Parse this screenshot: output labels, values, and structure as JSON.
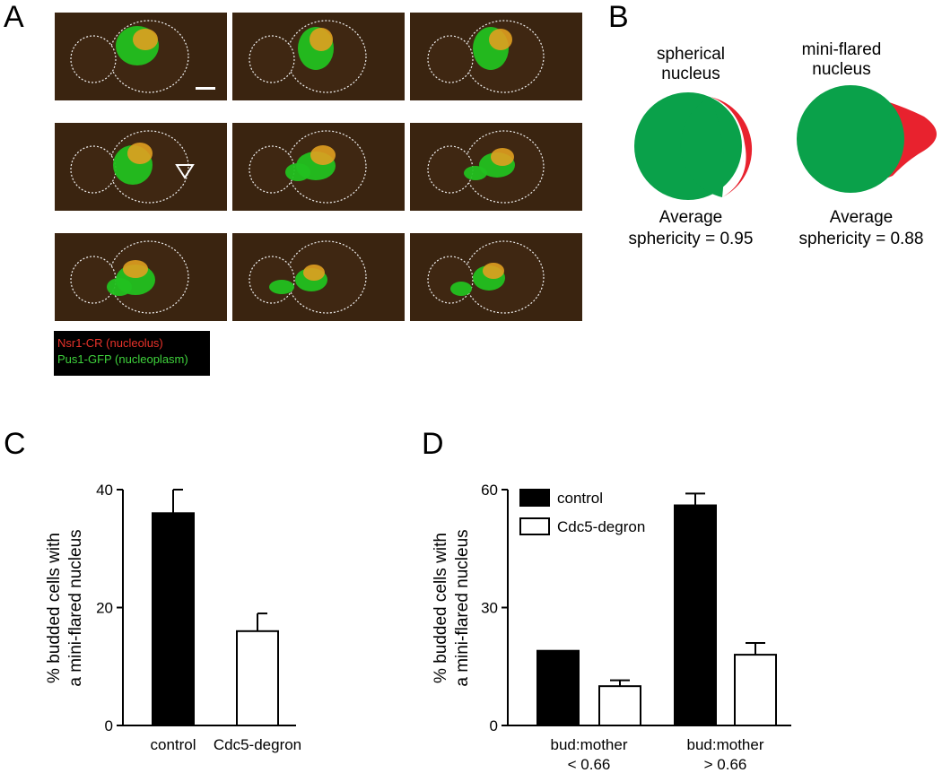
{
  "panels": {
    "a": "A",
    "b": "B",
    "c": "C",
    "d": "D"
  },
  "panel_a": {
    "legend": [
      {
        "text": "Nsr1-CR (nucleolus)",
        "color": "#e8322a"
      },
      {
        "text": "Pus1-GFP (nucleoplasm)",
        "color": "#3fd33c"
      }
    ]
  },
  "panel_b": {
    "spherical": {
      "label_line1": "spherical",
      "label_line2": "nucleus",
      "stat_line1": "Average",
      "stat_line2": "sphericity = 0.95"
    },
    "flared": {
      "label_line1": "mini-flared",
      "label_line2": "nucleus",
      "stat_line1": "Average",
      "stat_line2": "sphericity = 0.88"
    },
    "colors": {
      "nucleoplasm": "#0aa14a",
      "nucleolus": "#e8222e"
    }
  },
  "chart_data": [
    {
      "panel": "C",
      "type": "bar",
      "ylabel_line1": "% budded cells with",
      "ylabel_line2": "a mini-flared nucleus",
      "ylim": [
        0,
        40
      ],
      "yticks": [
        0,
        20,
        40
      ],
      "categories": [
        "control",
        "Cdc5-degron"
      ],
      "values": [
        36,
        16
      ],
      "errors": [
        4,
        3
      ],
      "fills": [
        "#000000",
        "#ffffff"
      ]
    },
    {
      "panel": "D",
      "type": "bar",
      "ylabel_line1": "% budded cells with",
      "ylabel_line2": "a mini-flared nucleus",
      "ylim": [
        0,
        60
      ],
      "yticks": [
        0,
        30,
        60
      ],
      "categories": [
        {
          "line1": "bud:mother",
          "line2": "< 0.66"
        },
        {
          "line1": "bud:mother",
          "line2": "> 0.66"
        }
      ],
      "series": [
        {
          "name": "control",
          "fill": "#000000",
          "values": [
            19,
            56
          ],
          "errors": [
            0,
            3
          ]
        },
        {
          "name": "Cdc5-degron",
          "fill": "#ffffff",
          "values": [
            10,
            18
          ],
          "errors": [
            1.5,
            3
          ]
        }
      ],
      "legend_position": "top-left"
    }
  ]
}
